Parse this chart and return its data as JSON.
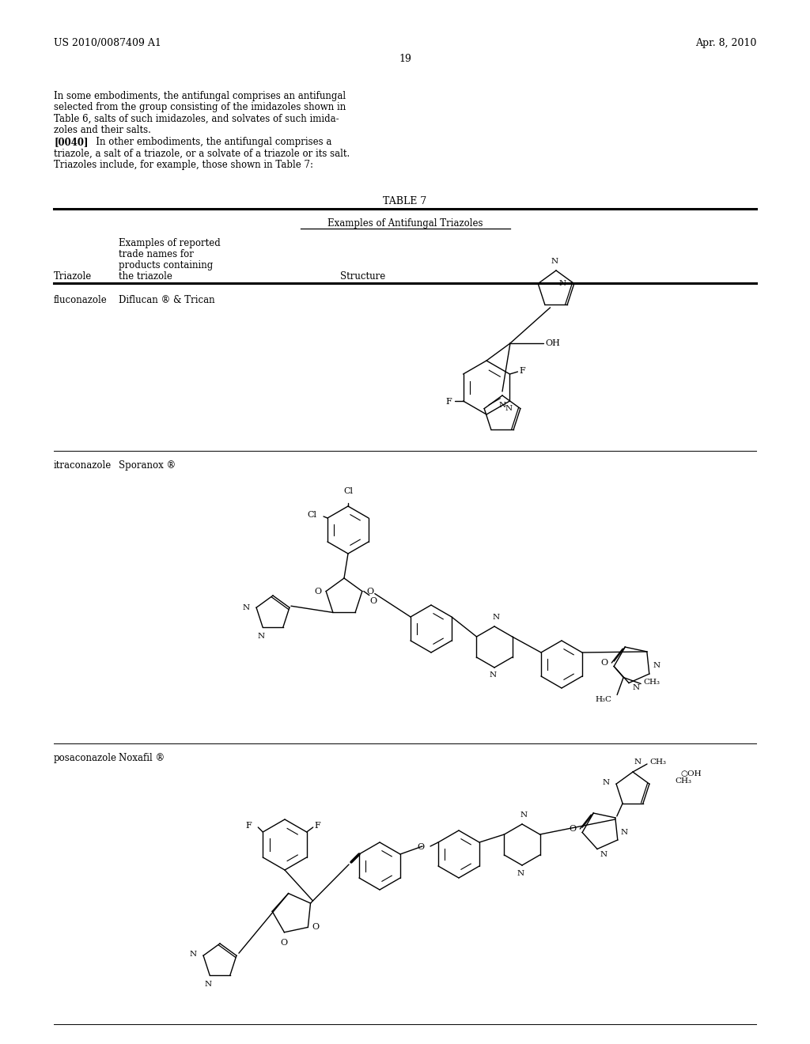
{
  "page_number": "19",
  "header_left": "US 2010/0087409 A1",
  "header_right": "Apr. 8, 2010",
  "body_text_line1": "In some embodiments, the antifungal comprises an antifungal",
  "body_text_line2": "selected from the group consisting of the imidazoles shown in",
  "body_text_line3": "Table 6, salts of such imidazoles, and solvates of such imida-",
  "body_text_line4": "zoles and their salts.",
  "body_text_line5": "[0040]    In other embodiments, the antifungal comprises a",
  "body_text_line6": "triazole, a salt of a triazole, or a solvate of a triazole or its salt.",
  "body_text_line7": "Triazoles include, for example, those shown in Table 7:",
  "table_title": "TABLE 7",
  "table_subtitle": "Examples of Antifungal Triazoles",
  "col1_header": "Triazole",
  "col2_header_line1": "Examples of reported",
  "col2_header_line2": "trade names for",
  "col2_header_line3": "products containing",
  "col2_header_line4": "the triazole",
  "col3_header": "Structure",
  "row1_col1": "fluconazole",
  "row1_col2": "Diflucan ® & Trican",
  "row2_col1": "itraconazole",
  "row2_col2": "Sporanox ®",
  "row3_col1": "posaconazole",
  "row3_col2": "Noxafil ®",
  "background_color": "#ffffff",
  "text_color": "#000000"
}
